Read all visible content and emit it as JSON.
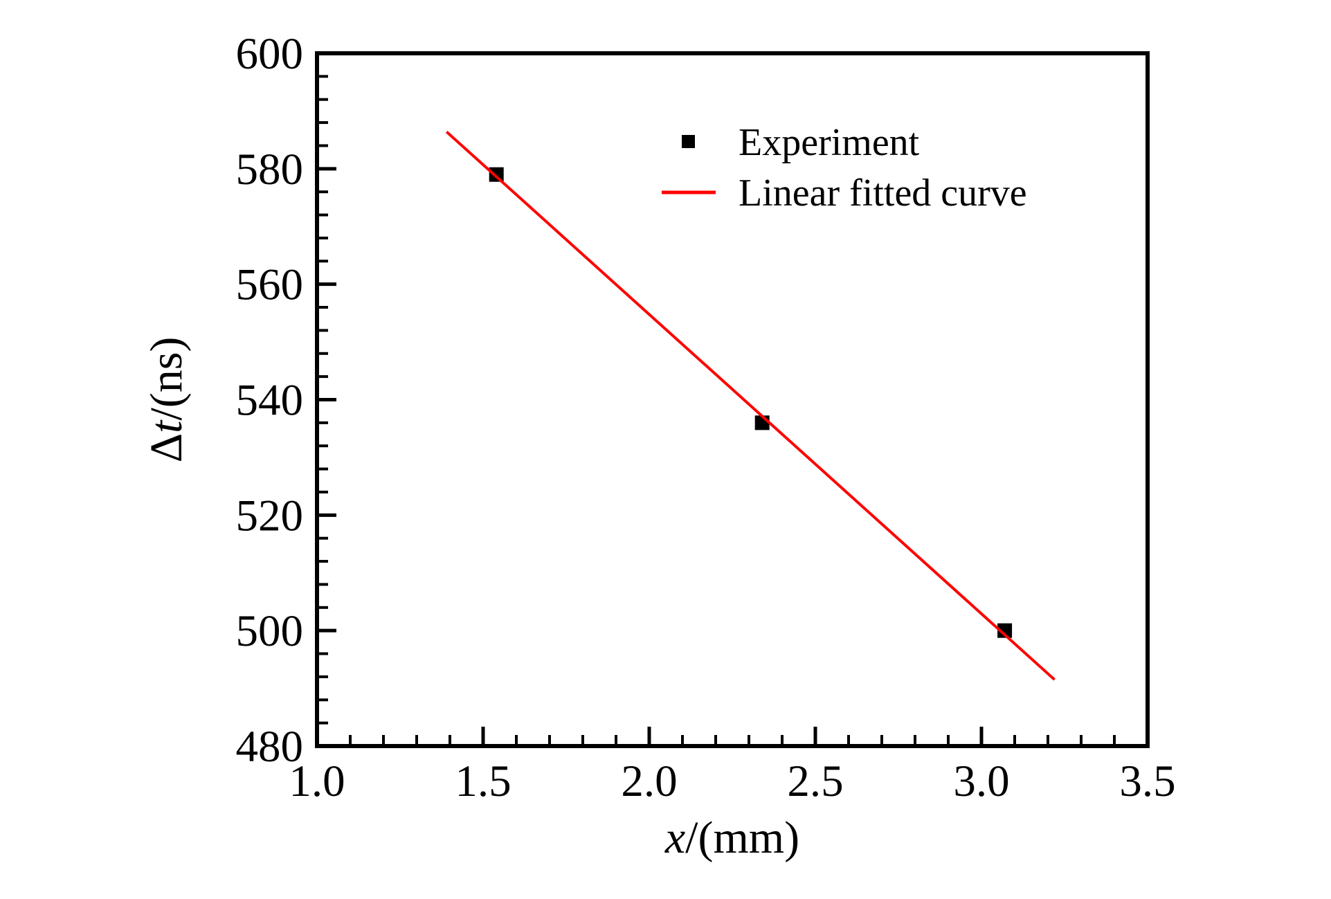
{
  "figure": {
    "background_color": "#ffffff",
    "frame_color": "#000000"
  },
  "chart_data": {
    "type": "scatter",
    "title": "",
    "xlabel": {
      "variable": "x",
      "rest": "/(mm)"
    },
    "ylabel": {
      "prefix": "Δ",
      "variable": "t",
      "rest": "/(ns)"
    },
    "x_axis": {
      "min": 1.0,
      "max": 3.5,
      "major_ticks": [
        1.0,
        1.5,
        2.0,
        2.5,
        3.0,
        3.5
      ],
      "major_tick_labels": [
        "1.0",
        "1.5",
        "2.0",
        "2.5",
        "3.0",
        "3.5"
      ],
      "minor_tick_step": 0.1
    },
    "y_axis": {
      "min": 480,
      "max": 600,
      "major_ticks": [
        480,
        500,
        520,
        540,
        560,
        580,
        600
      ],
      "major_tick_labels": [
        "480",
        "500",
        "520",
        "540",
        "560",
        "580",
        "600"
      ],
      "minor_tick_step": 4
    },
    "grid": "off",
    "series": [
      {
        "name": "Experiment",
        "type": "scatter",
        "marker": "square",
        "color": "#000000",
        "points": [
          [
            1.54,
            579
          ],
          [
            2.34,
            536
          ],
          [
            3.07,
            500
          ]
        ]
      },
      {
        "name": "Linear fitted curve",
        "type": "line",
        "color": "#ff0000",
        "points": [
          [
            1.39,
            586.4
          ],
          [
            3.22,
            491.5
          ]
        ]
      }
    ],
    "legend": {
      "position": "upper-right-inside",
      "entries": [
        "Experiment",
        "Linear fitted curve"
      ]
    }
  }
}
